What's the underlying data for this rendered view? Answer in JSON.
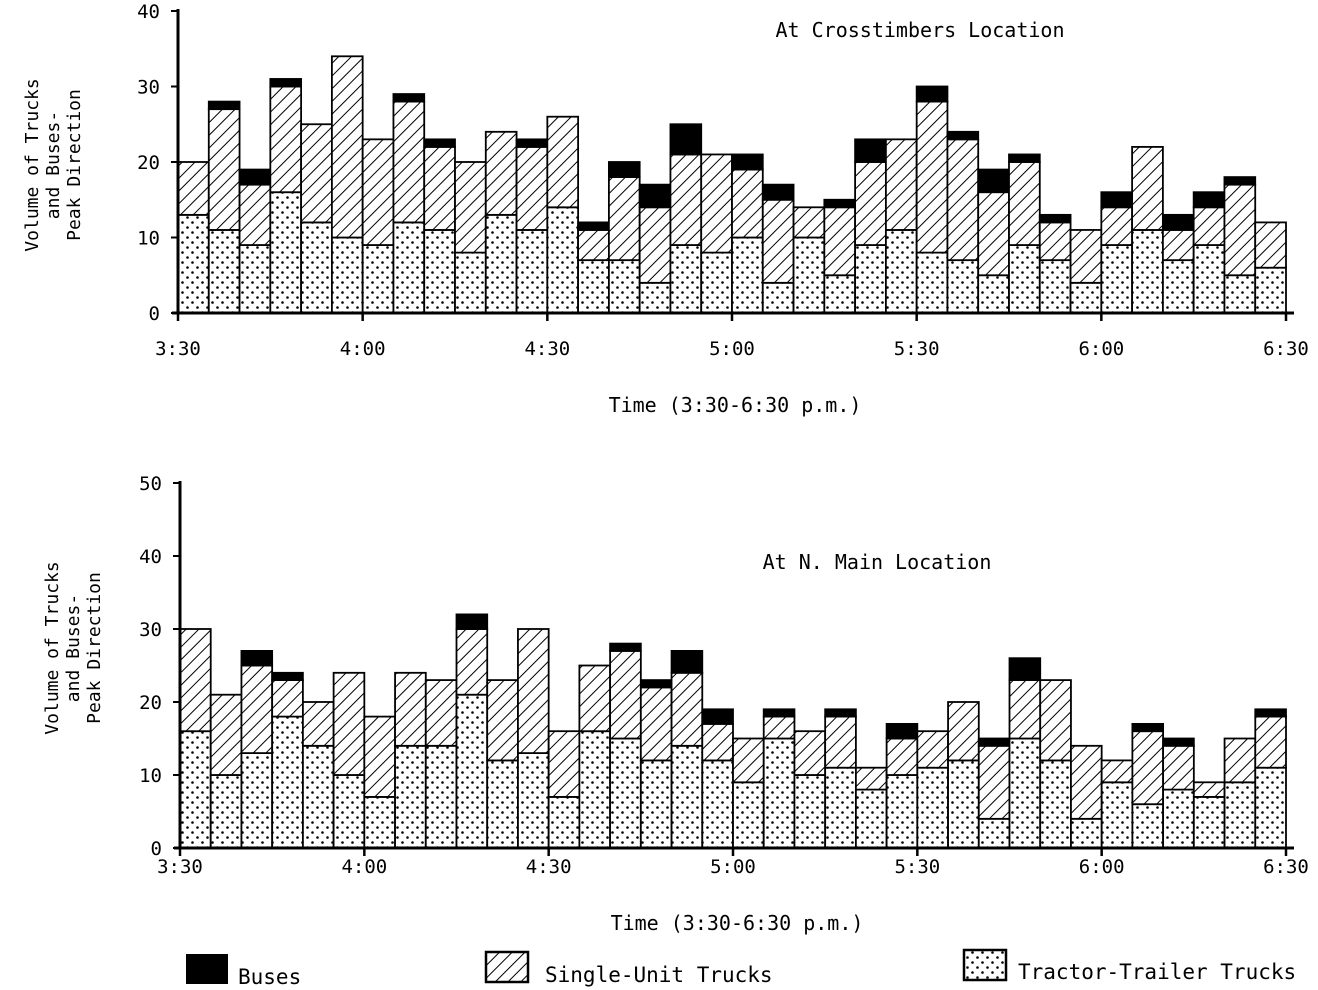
{
  "chart_data": [
    {
      "type": "bar",
      "stacked": true,
      "title": "At Crosstimbers Location",
      "xlabel": "Time (3:30-6:30 p.m.)",
      "ylabel": [
        "Volume of Trucks",
        "and Buses-",
        "Peak Direction"
      ],
      "ylim": [
        0,
        40
      ],
      "yticks": [
        "0",
        "10",
        "20",
        "30",
        "40"
      ],
      "xticks": [
        "3:30",
        "4:00",
        "4:30",
        "5:00",
        "5:30",
        "6:00",
        "6:30"
      ],
      "bin_minutes": 5,
      "series": [
        {
          "name": "Tractor-Trailer Trucks",
          "pattern": "dots",
          "values": [
            13,
            11,
            9,
            16,
            12,
            10,
            9,
            12,
            11,
            8,
            13,
            11,
            14,
            7,
            7,
            4,
            9,
            8,
            10,
            4,
            10,
            5,
            9,
            11,
            8,
            7,
            5,
            9,
            7,
            4,
            9,
            11,
            7,
            9,
            5,
            6
          ]
        },
        {
          "name": "Single-Unit Trucks",
          "pattern": "hatch",
          "values": [
            7,
            16,
            8,
            14,
            13,
            24,
            14,
            16,
            11,
            12,
            11,
            11,
            12,
            4,
            11,
            10,
            12,
            13,
            9,
            11,
            4,
            9,
            11,
            12,
            20,
            16,
            11,
            11,
            5,
            7,
            5,
            11,
            4,
            5,
            12,
            6
          ]
        },
        {
          "name": "Buses",
          "pattern": "solid",
          "values": [
            0,
            1,
            2,
            1,
            0,
            0,
            0,
            1,
            1,
            0,
            0,
            1,
            0,
            1,
            2,
            3,
            4,
            0,
            2,
            2,
            0,
            1,
            3,
            0,
            2,
            1,
            3,
            1,
            1,
            0,
            2,
            0,
            2,
            2,
            1,
            0
          ]
        }
      ]
    },
    {
      "type": "bar",
      "stacked": true,
      "title": "At N. Main Location",
      "xlabel": "Time (3:30-6:30 p.m.)",
      "ylabel": [
        "Volume of Trucks",
        "and Buses-",
        "Peak Direction"
      ],
      "ylim": [
        0,
        50
      ],
      "yticks": [
        "0",
        "10",
        "20",
        "30",
        "40",
        "50"
      ],
      "xticks": [
        "3:30",
        "4:00",
        "4:30",
        "5:00",
        "5:30",
        "6:00",
        "6:30"
      ],
      "bin_minutes": 5,
      "series": [
        {
          "name": "Tractor-Trailer Trucks",
          "pattern": "dots",
          "values": [
            16,
            10,
            13,
            18,
            14,
            10,
            7,
            14,
            14,
            21,
            12,
            13,
            7,
            16,
            15,
            12,
            14,
            12,
            9,
            15,
            10,
            11,
            8,
            10,
            11,
            12,
            4,
            15,
            12,
            4,
            9,
            6,
            8,
            7,
            9,
            11
          ]
        },
        {
          "name": "Single-Unit Trucks",
          "pattern": "hatch",
          "values": [
            14,
            11,
            12,
            5,
            6,
            14,
            11,
            10,
            9,
            9,
            11,
            17,
            9,
            9,
            12,
            10,
            10,
            5,
            6,
            3,
            6,
            7,
            3,
            5,
            5,
            8,
            10,
            8,
            11,
            10,
            3,
            10,
            6,
            2,
            6,
            7
          ]
        },
        {
          "name": "Buses",
          "pattern": "solid",
          "values": [
            0,
            0,
            2,
            1,
            0,
            0,
            0,
            0,
            0,
            2,
            0,
            0,
            0,
            0,
            1,
            1,
            3,
            2,
            0,
            1,
            0,
            1,
            0,
            2,
            0,
            0,
            1,
            3,
            0,
            0,
            0,
            1,
            1,
            0,
            0,
            1
          ]
        }
      ]
    }
  ],
  "legend": [
    {
      "label": "Buses",
      "pattern": "solid"
    },
    {
      "label": "Single-Unit Trucks",
      "pattern": "hatch"
    },
    {
      "label": "Tractor-Trailer Trucks",
      "pattern": "dots"
    }
  ]
}
